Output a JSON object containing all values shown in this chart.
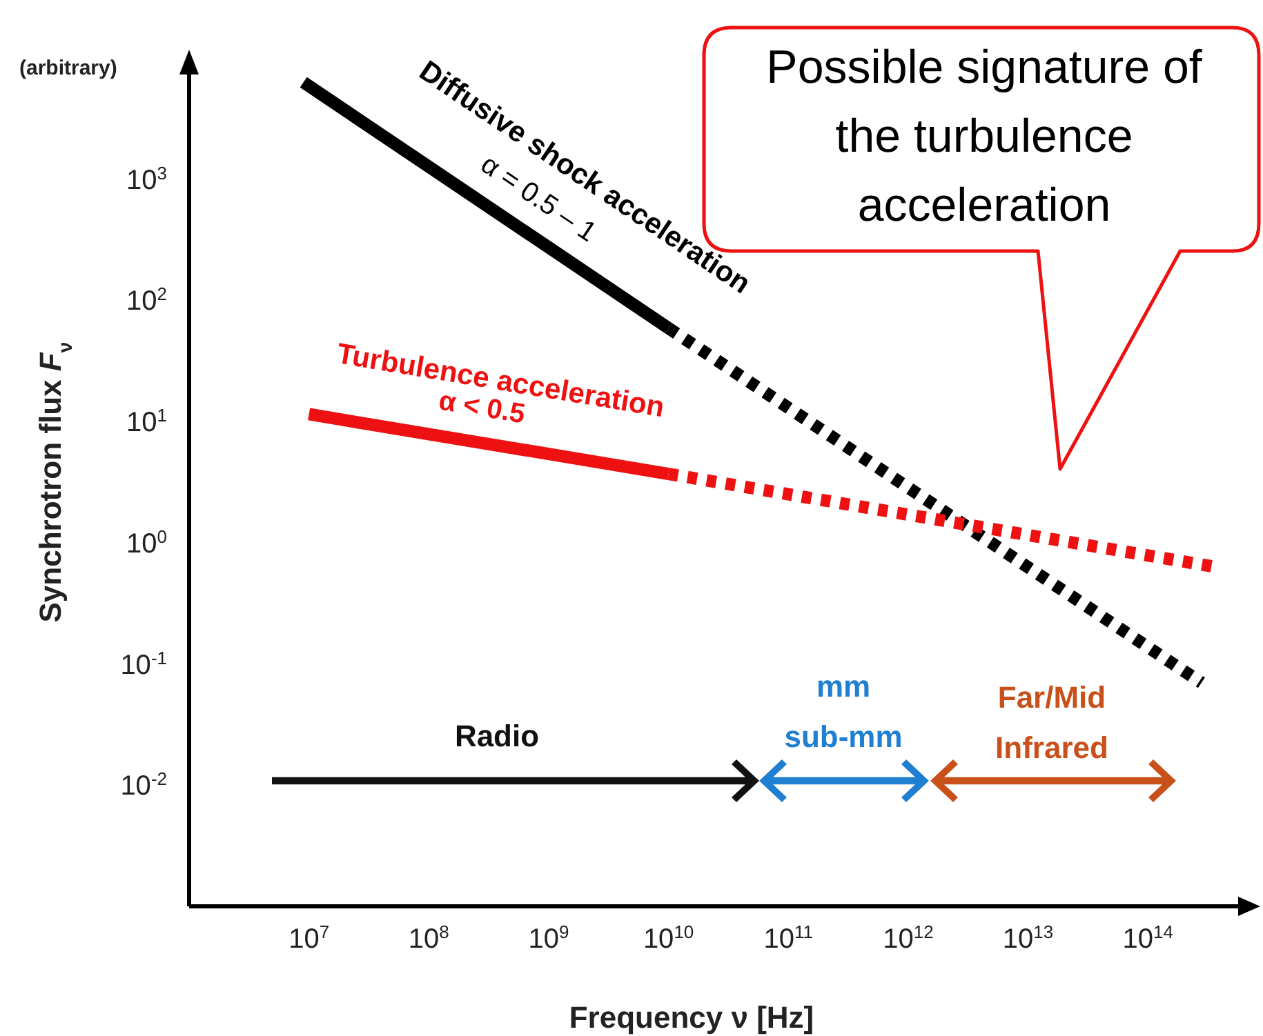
{
  "chart_data": {
    "type": "line",
    "log": "xy",
    "xlabel": "Frequency ν [Hz]",
    "ylabel": "Synchrotron flux F$_{ν}$",
    "xlim": [
      1000000,
      700000000000000
    ],
    "ylim": [
      0.001,
      10000
    ],
    "xticks": [
      {
        "value": 10000000,
        "label": "10$^{7}$"
      },
      {
        "value": 100000000,
        "label": "10$^{8}$"
      },
      {
        "value": 1000000000,
        "label": "10$^{9}$"
      },
      {
        "value": 10000000000,
        "label": "10$^{10}$"
      },
      {
        "value": 100000000000,
        "label": "10$^{11}$"
      },
      {
        "value": 1000000000000,
        "label": "10$^{12}$"
      },
      {
        "value": 10000000000000,
        "label": "10$^{13}$"
      },
      {
        "value": 100000000000000,
        "label": "10$^{14}$"
      }
    ],
    "yticks": [
      {
        "value": 0.01,
        "label": "10$^{-2}$"
      },
      {
        "value": 0.1,
        "label": "10$^{-1}$"
      },
      {
        "value": 1,
        "label": "10$^{0}$"
      },
      {
        "value": 10,
        "label": "10$^{1}$"
      },
      {
        "value": 100,
        "label": "10$^{2}$"
      },
      {
        "value": 1000,
        "label": "10$^{3}$"
      }
    ],
    "series": [
      {
        "name": "Diffusive shock acceleration",
        "color": "#000000",
        "line_style": "solid",
        "x": [
          9000000,
          10000000000
        ],
        "values": [
          6300,
          59
        ]
      },
      {
        "color": "#000000",
        "line_style": "dotted",
        "x": [
          10000000000,
          280000000000000
        ],
        "values": [
          59,
          0.07
        ]
      },
      {
        "name": "Turbulence acceleration",
        "color": "#ee1111",
        "line_style": "solid",
        "x": [
          10000000,
          10000000000
        ],
        "values": [
          11.5,
          3.7
        ]
      },
      {
        "color": "#ee1111",
        "line_style": "dotted",
        "x": [
          10000000000,
          370000000000000
        ],
        "values": [
          3.7,
          0.63
        ]
      }
    ],
    "annotations": [
      "(arbitrary)",
      "α = 0.5 – 1",
      "α < 0.5",
      "Possible signature of the turbulence acceleration",
      "Radio",
      "mm\nsub-mm",
      "Far/Mid\nInfrared"
    ]
  }
}
